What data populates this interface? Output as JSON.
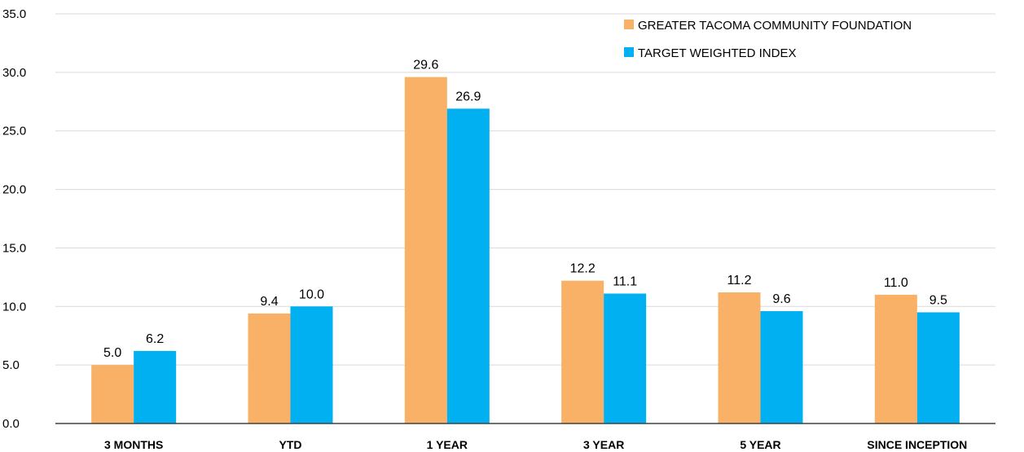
{
  "chart_data": {
    "type": "bar",
    "categories": [
      "3 MONTHS",
      "YTD",
      "1 YEAR",
      "3 YEAR",
      "5 YEAR",
      "SINCE INCEPTION"
    ],
    "series": [
      {
        "name": "GREATER TACOMA COMMUNITY FOUNDATION",
        "color": "#F9B067",
        "values": [
          5.0,
          9.4,
          29.6,
          12.2,
          11.2,
          11.0
        ]
      },
      {
        "name": "TARGET WEIGHTED INDEX",
        "color": "#00B0F0",
        "values": [
          6.2,
          10.0,
          26.9,
          11.1,
          9.6,
          9.5
        ]
      }
    ],
    "ylim": [
      0,
      35
    ],
    "yticks": [
      "0.0",
      "5.0",
      "10.0",
      "15.0",
      "20.0",
      "25.0",
      "30.0",
      "35.0"
    ],
    "grid": true,
    "legend": "top-right",
    "title": "",
    "xlabel": "",
    "ylabel": ""
  }
}
